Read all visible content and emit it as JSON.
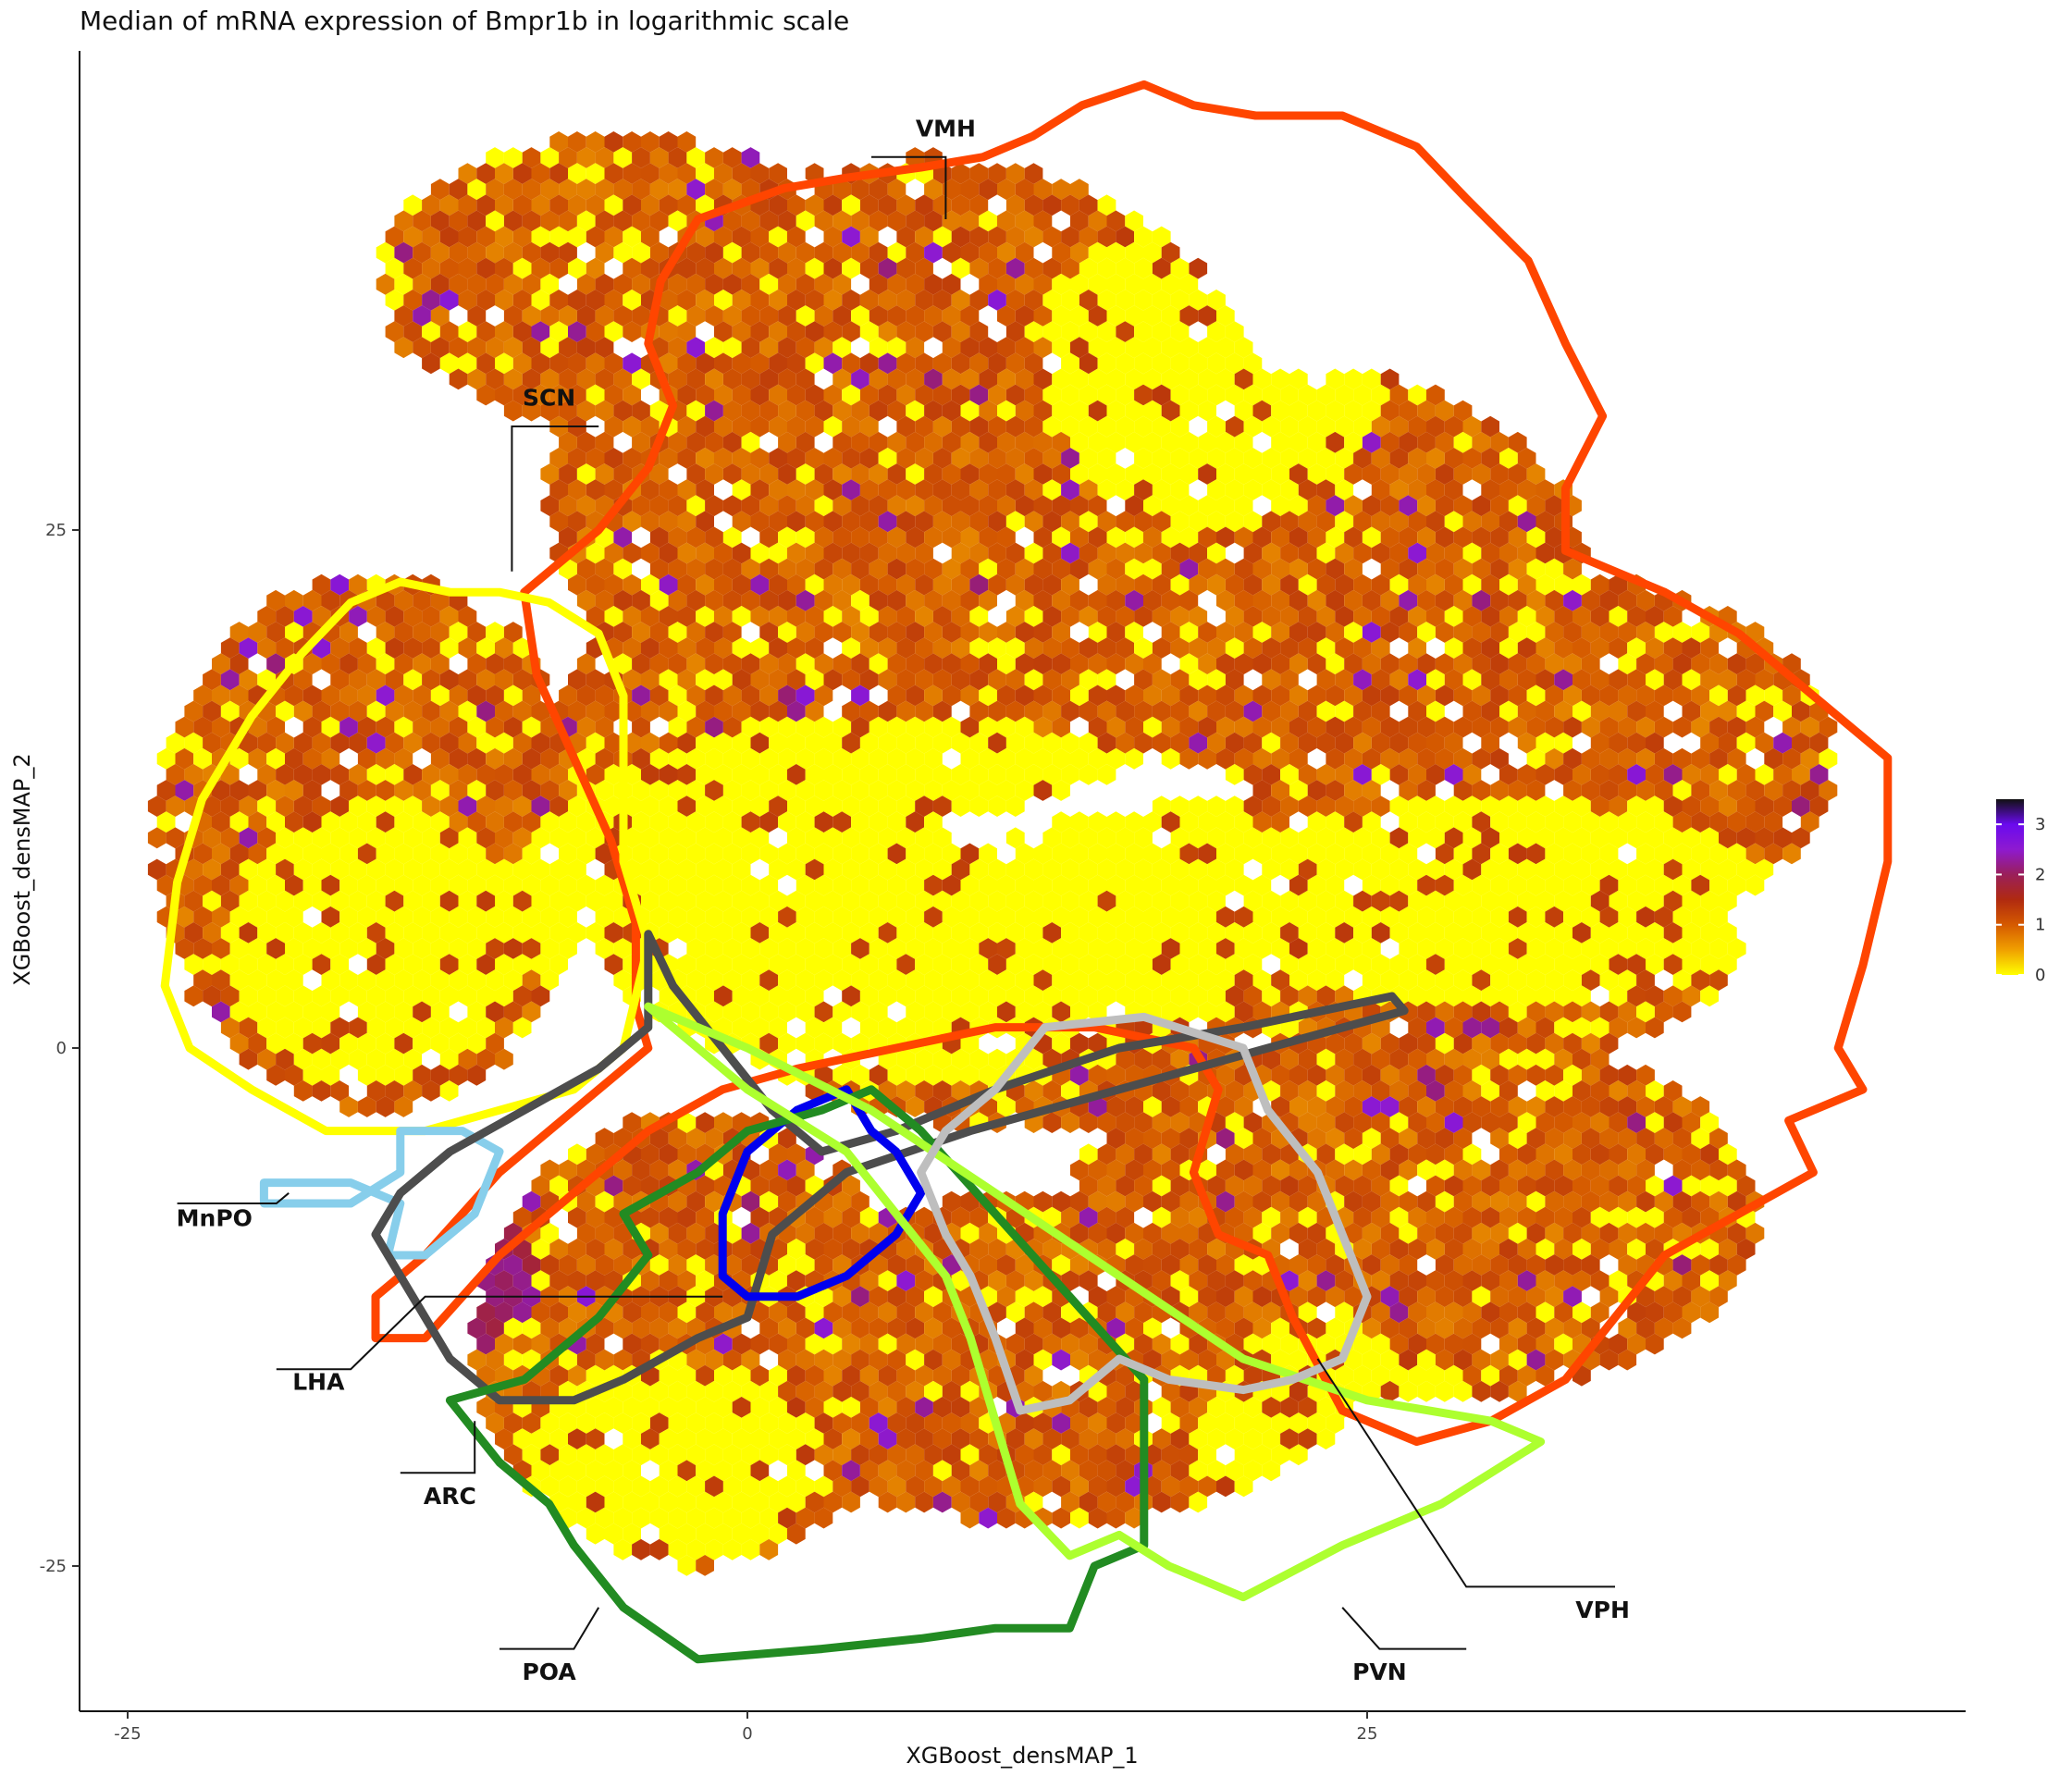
{
  "chart_data": {
    "type": "hexbin",
    "title": "Median of mRNA expression of Bmpr1b in logarithmic scale",
    "xlabel": "XGBoost_densMAP_1",
    "ylabel": "XGBoost_densMAP_2",
    "x_ticks": [
      -25,
      0,
      25
    ],
    "y_ticks": [
      -25,
      0,
      25
    ],
    "xlim": [
      -28.5,
      49
    ],
    "ylim": [
      -32,
      48
    ],
    "colorbar": {
      "ticks": [
        0,
        1,
        2,
        3
      ],
      "range": [
        0,
        3.5
      ],
      "colors": [
        "#ffff00",
        "#f0a000",
        "#d55a00",
        "#b02a10",
        "#9a1f5a",
        "#8e1ad0",
        "#6a0aee",
        "#111111"
      ]
    },
    "regions": [
      {
        "name": "VMH",
        "color": "#ff4500"
      },
      {
        "name": "SCN",
        "color": "#ffff00"
      },
      {
        "name": "MnPO",
        "color": "#87ceeb"
      },
      {
        "name": "LHA",
        "color": "#4d4d4d"
      },
      {
        "name": "ARC",
        "color": "#0000ee"
      },
      {
        "name": "POA",
        "color": "#228b22"
      },
      {
        "name": "PVN",
        "color": "#adff2f"
      },
      {
        "name": "VPH",
        "color": "#bebebe"
      }
    ],
    "labels": [
      {
        "text": "VMH",
        "x": 8,
        "y": 44
      },
      {
        "text": "SCN",
        "x": -8,
        "y": 31
      },
      {
        "text": "MnPO",
        "x": -21.5,
        "y": -8.6
      },
      {
        "text": "LHA",
        "x": -17.3,
        "y": -16.5
      },
      {
        "text": "ARC",
        "x": -12,
        "y": -22
      },
      {
        "text": "POA",
        "x": -8,
        "y": -30.5
      },
      {
        "text": "PVN",
        "x": 25.5,
        "y": -30.5
      },
      {
        "text": "VPH",
        "x": 34.5,
        "y": -27.5
      }
    ]
  }
}
